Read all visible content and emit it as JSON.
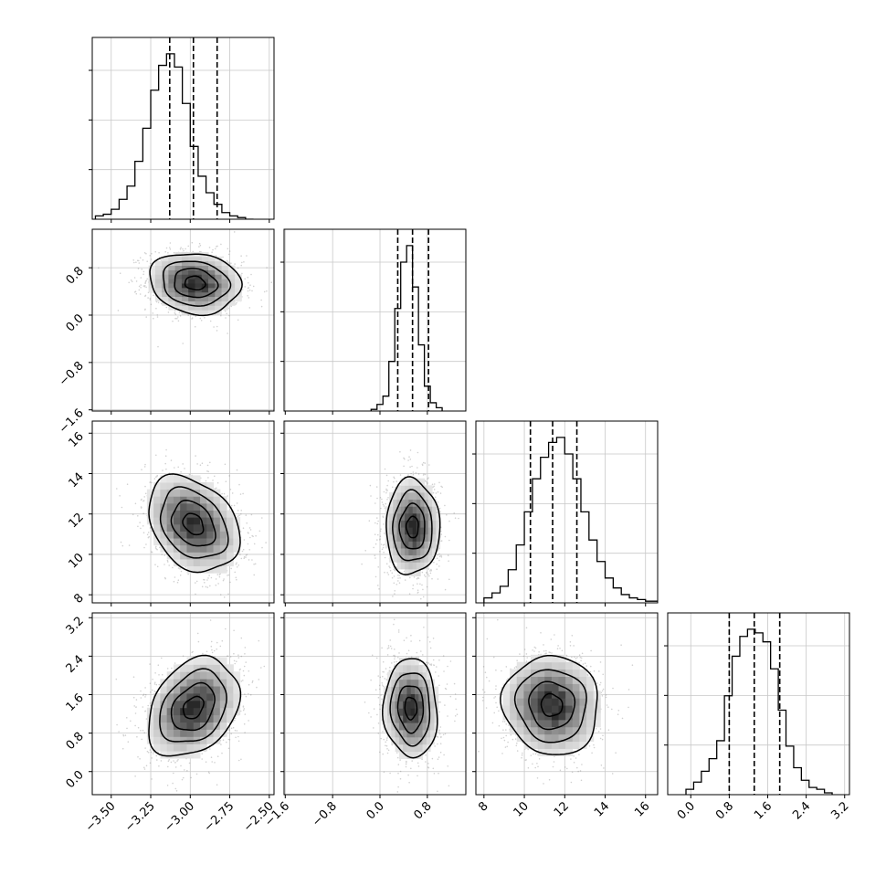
{
  "chart_data": {
    "type": "corner",
    "title": "",
    "grid": true,
    "quantiles": [
      0.16,
      0.5,
      0.84
    ],
    "parameters": [
      {
        "ticks": [
          -3.5,
          -3.25,
          -3.0,
          -2.75,
          -2.5
        ],
        "tick_labels": [
          "−3.50",
          "−3.25",
          "−3.00",
          "−2.75",
          "−2.50"
        ],
        "range": [
          -3.62,
          -2.47
        ]
      },
      {
        "ticks": [
          -1.6,
          -0.8,
          0.0,
          0.8
        ],
        "tick_labels": [
          "−1.6",
          "−0.8",
          "0.0",
          "0.8"
        ],
        "range": [
          -1.62,
          1.45
        ]
      },
      {
        "ticks": [
          8,
          10,
          12,
          14,
          16
        ],
        "tick_labels": [
          "8",
          "10",
          "12",
          "14",
          "16"
        ],
        "range": [
          7.6,
          16.6
        ]
      },
      {
        "ticks": [
          0.0,
          0.8,
          1.6,
          2.4,
          3.2
        ],
        "tick_labels": [
          "0.0",
          "0.8",
          "1.6",
          "2.4",
          "3.2"
        ],
        "range": [
          -0.48,
          3.3
        ]
      }
    ],
    "marginals": [
      {
        "parameter_index": 0,
        "quantile_values": [
          -3.13,
          -2.98,
          -2.83
        ],
        "hist_x_start": -3.6,
        "hist_bin_width": 0.05,
        "counts": [
          2,
          3,
          6,
          12,
          20,
          35,
          55,
          78,
          93,
          100,
          92,
          70,
          44,
          26,
          16,
          9,
          4,
          2,
          1,
          0
        ]
      },
      {
        "parameter_index": 1,
        "quantile_values": [
          0.3,
          0.55,
          0.82
        ],
        "hist_x_start": -0.15,
        "hist_bin_width": 0.1,
        "counts": [
          1,
          4,
          9,
          30,
          62,
          90,
          100,
          75,
          40,
          15,
          5,
          2
        ]
      },
      {
        "parameter_index": 2,
        "quantile_values": [
          10.3,
          11.4,
          12.6
        ],
        "hist_x_start": 8.0,
        "hist_bin_width": 0.4,
        "counts": [
          3,
          6,
          10,
          20,
          35,
          55,
          75,
          88,
          97,
          100,
          90,
          75,
          55,
          38,
          25,
          15,
          9,
          5,
          3,
          2,
          1,
          1
        ]
      },
      {
        "parameter_index": 3,
        "quantile_values": [
          0.8,
          1.32,
          1.85
        ],
        "hist_x_start": -0.1,
        "hist_bin_width": 0.16,
        "counts": [
          3,
          7,
          13,
          20,
          30,
          55,
          77,
          88,
          92,
          90,
          85,
          70,
          47,
          27,
          15,
          8,
          4,
          3,
          1
        ]
      }
    ],
    "joint": [
      {
        "x_index": 0,
        "y_index": 1,
        "mean": [
          -2.97,
          0.54
        ],
        "std": [
          0.14,
          0.25
        ],
        "rho": -0.12
      },
      {
        "x_index": 0,
        "y_index": 2,
        "mean": [
          -2.98,
          11.5
        ],
        "std": [
          0.14,
          1.15
        ],
        "rho": -0.3
      },
      {
        "x_index": 1,
        "y_index": 2,
        "mean": [
          0.55,
          11.35
        ],
        "std": [
          0.22,
          1.15
        ],
        "rho": 0.0
      },
      {
        "x_index": 0,
        "y_index": 3,
        "mean": [
          -2.98,
          1.33
        ],
        "std": [
          0.14,
          0.5
        ],
        "rho": 0.3
      },
      {
        "x_index": 1,
        "y_index": 3,
        "mean": [
          0.52,
          1.32
        ],
        "std": [
          0.22,
          0.5
        ],
        "rho": -0.05
      },
      {
        "x_index": 2,
        "y_index": 3,
        "mean": [
          11.35,
          1.38
        ],
        "std": [
          1.15,
          0.5
        ],
        "rho": -0.05
      }
    ],
    "contour_levels": [
      0.12,
      0.32,
      0.62,
      0.9
    ]
  }
}
